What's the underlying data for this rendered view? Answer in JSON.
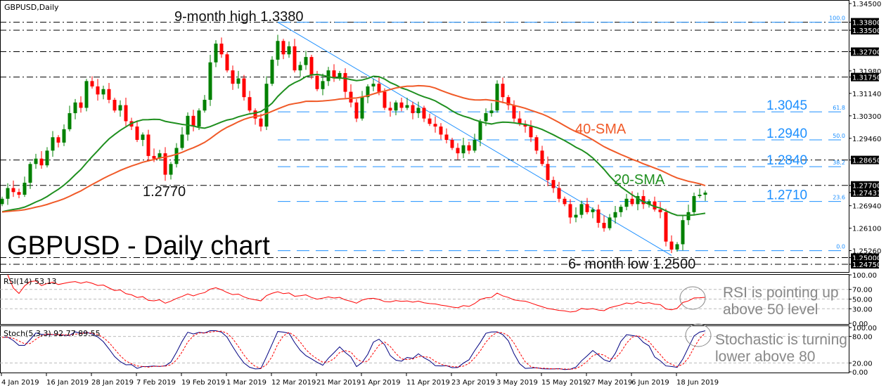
{
  "chart_data": {
    "type": "candlestick",
    "symbol_label": "GBPUSD,Daily",
    "title": "GBPUSD - Daily chart",
    "colors": {
      "up": "#008000",
      "down": "#ff0000",
      "sma20": "#1f8f1f",
      "sma40": "#f05a28",
      "fib": "#1e90ff",
      "rsi": "#ff0000",
      "stoch_main": "#000080",
      "stoch_signal": "#ff0000"
    },
    "price_range": [
      1.2475,
      1.345
    ],
    "closes": [
      1.272,
      1.276,
      1.2745,
      1.2735,
      1.278,
      1.285,
      1.287,
      1.2845,
      1.29,
      1.295,
      1.293,
      1.298,
      1.304,
      1.308,
      1.306,
      1.316,
      1.314,
      1.311,
      1.313,
      1.309,
      1.305,
      1.307,
      1.301,
      1.299,
      1.294,
      1.296,
      1.288,
      1.287,
      1.289,
      1.281,
      1.285,
      1.291,
      1.296,
      1.303,
      1.299,
      1.305,
      1.309,
      1.323,
      1.33,
      1.326,
      1.32,
      1.315,
      1.317,
      1.31,
      1.305,
      1.302,
      1.299,
      1.315,
      1.324,
      1.331,
      1.326,
      1.329,
      1.32,
      1.322,
      1.325,
      1.318,
      1.313,
      1.316,
      1.32,
      1.317,
      1.319,
      1.312,
      1.308,
      1.302,
      1.31,
      1.314,
      1.315,
      1.312,
      1.306,
      1.305,
      1.308,
      1.306,
      1.307,
      1.304,
      1.306,
      1.302,
      1.3,
      1.299,
      1.296,
      1.294,
      1.291,
      1.289,
      1.292,
      1.29,
      1.294,
      1.301,
      1.304,
      1.305,
      1.315,
      1.31,
      1.307,
      1.302,
      1.3,
      1.299,
      1.295,
      1.29,
      1.285,
      1.279,
      1.276,
      1.272,
      1.27,
      1.265,
      1.266,
      1.27,
      1.267,
      1.268,
      1.263,
      1.261,
      1.265,
      1.267,
      1.269,
      1.272,
      1.27,
      1.273,
      1.27,
      1.271,
      1.268,
      1.267,
      1.256,
      1.253,
      1.255,
      1.264,
      1.267,
      1.273,
      1.2735,
      1.2743
    ],
    "open_first": 1.27,
    "sma_periods": [
      20,
      40
    ],
    "sma_labels": {
      "sma20": "20-SMA",
      "sma40": "40-SMA"
    },
    "price_ticks": [
      "1.34500",
      "1.33800",
      "1.33500",
      "1.32700",
      "1.31980",
      "1.31750",
      "1.31140",
      "1.30300",
      "1.29460",
      "1.28650",
      "1.27700",
      "1.27431",
      "1.26940",
      "1.26100",
      "1.25260",
      "1.25000",
      "1.24750"
    ],
    "highlighted_ticks": [
      "1.33800",
      "1.33500",
      "1.32700",
      "1.31750",
      "1.28650",
      "1.27700",
      "1.27431",
      "1.25000",
      "1.24750"
    ],
    "horizontal_levels": [
      1.338,
      1.335,
      1.327,
      1.3175,
      1.2865,
      1.277,
      1.25,
      1.2475
    ],
    "fib_levels": [
      {
        "pct": "100.0",
        "price": 1.338,
        "label": ""
      },
      {
        "pct": "61.8",
        "price": 1.3045,
        "label": "1.3045"
      },
      {
        "pct": "50.0",
        "price": 1.294,
        "label": "1.2940"
      },
      {
        "pct": "38.2",
        "price": 1.284,
        "label": "1.2840"
      },
      {
        "pct": "23.6",
        "price": 1.271,
        "label": "1.2710"
      },
      {
        "pct": "0.0",
        "price": 1.2526,
        "label": ""
      }
    ],
    "trendline": {
      "from_index": 49,
      "from_price": 1.338,
      "to_index": 119,
      "to_price": 1.2508
    },
    "annotations": {
      "high": "9-month high 1.3380",
      "low_feb": "1.2770",
      "low": "6- month low 1.2500"
    },
    "x_tick_labels": [
      "4 Jan 2019",
      "16 Jan 2019",
      "28 Jan 2019",
      "7 Feb 2019",
      "19 Feb 2019",
      "1 Mar 2019",
      "12 Mar 2019",
      "21 Mar 2019",
      "1 Apr 2019",
      "11 Apr 2019",
      "23 Apr 2019",
      "3 May 2019",
      "15 May 2019",
      "27 May 2019",
      "6 Jun 2019",
      "18 Jun 2019"
    ],
    "rsi": {
      "label": "RSI(14) 53.13",
      "period": 14,
      "ticks": [
        "100.00",
        "70.00",
        "50.00",
        "30.00",
        "0.00"
      ],
      "levels": [
        70,
        50,
        30
      ],
      "note_line1": "RSI is pointing up",
      "note_line2": "above 50 level"
    },
    "stoch": {
      "label": "Stoch(5,3,3) 92.77 89.55",
      "k": 5,
      "d": 3,
      "slowing": 3,
      "ticks": [
        "100.00",
        "80.00",
        "20.00",
        "0.00"
      ],
      "levels": [
        80,
        20
      ],
      "note_line1": "Stochastic is turning",
      "note_line2": "lower above 80"
    }
  }
}
